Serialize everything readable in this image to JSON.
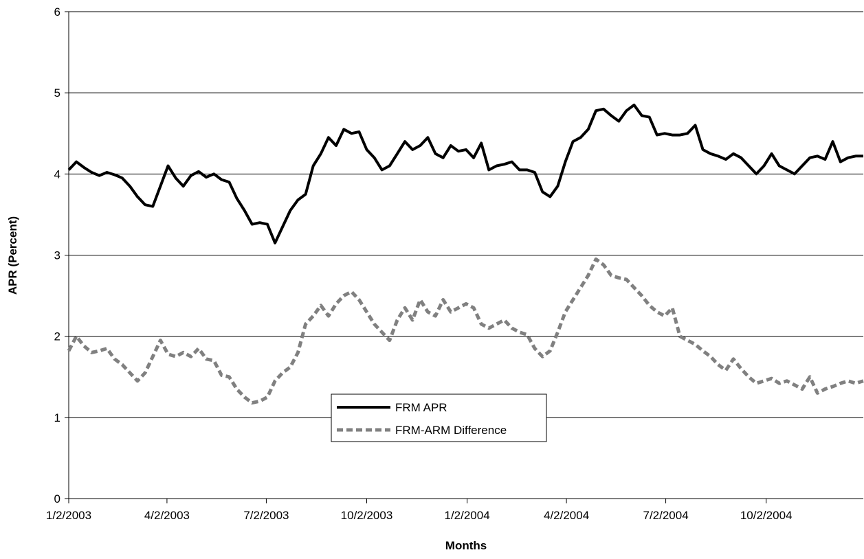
{
  "chart_data": {
    "type": "line",
    "title": "",
    "xlabel": "Months",
    "ylabel": "APR (Percent)",
    "ylim": [
      0,
      6
    ],
    "yticks": [
      0,
      1,
      2,
      3,
      4,
      5,
      6
    ],
    "xlim": [
      "2003-01-02",
      "2004-12-30"
    ],
    "xticks": [
      {
        "date": "2003-01-02",
        "label": "1/2/2003"
      },
      {
        "date": "2003-04-02",
        "label": "4/2/2003"
      },
      {
        "date": "2003-07-02",
        "label": "7/2/2003"
      },
      {
        "date": "2003-10-02",
        "label": "10/2/2003"
      },
      {
        "date": "2004-01-02",
        "label": "1/2/2004"
      },
      {
        "date": "2004-04-02",
        "label": "4/2/2004"
      },
      {
        "date": "2004-07-02",
        "label": "7/2/2004"
      },
      {
        "date": "2004-10-02",
        "label": "10/2/2004"
      }
    ],
    "grid": "horizontal",
    "legend_position": "center-bottom",
    "series": [
      {
        "name": "FRM APR",
        "color": "#000000",
        "style": "solid",
        "points": [
          [
            "2003-01-02",
            4.05
          ],
          [
            "2003-01-09",
            4.15
          ],
          [
            "2003-01-16",
            4.08
          ],
          [
            "2003-01-23",
            4.02
          ],
          [
            "2003-01-30",
            3.98
          ],
          [
            "2003-02-06",
            4.02
          ],
          [
            "2003-02-13",
            3.99
          ],
          [
            "2003-02-20",
            3.95
          ],
          [
            "2003-02-27",
            3.85
          ],
          [
            "2003-03-06",
            3.72
          ],
          [
            "2003-03-13",
            3.62
          ],
          [
            "2003-03-20",
            3.6
          ],
          [
            "2003-03-27",
            3.85
          ],
          [
            "2003-04-03",
            4.1
          ],
          [
            "2003-04-10",
            3.95
          ],
          [
            "2003-04-17",
            3.85
          ],
          [
            "2003-04-24",
            3.98
          ],
          [
            "2003-05-01",
            4.03
          ],
          [
            "2003-05-08",
            3.96
          ],
          [
            "2003-05-15",
            4.0
          ],
          [
            "2003-05-22",
            3.93
          ],
          [
            "2003-05-29",
            3.9
          ],
          [
            "2003-06-05",
            3.7
          ],
          [
            "2003-06-12",
            3.55
          ],
          [
            "2003-06-19",
            3.38
          ],
          [
            "2003-06-26",
            3.4
          ],
          [
            "2003-07-03",
            3.38
          ],
          [
            "2003-07-10",
            3.15
          ],
          [
            "2003-07-17",
            3.35
          ],
          [
            "2003-07-24",
            3.55
          ],
          [
            "2003-07-31",
            3.68
          ],
          [
            "2003-08-07",
            3.75
          ],
          [
            "2003-08-14",
            4.1
          ],
          [
            "2003-08-21",
            4.25
          ],
          [
            "2003-08-28",
            4.45
          ],
          [
            "2003-09-04",
            4.35
          ],
          [
            "2003-09-11",
            4.55
          ],
          [
            "2003-09-18",
            4.5
          ],
          [
            "2003-09-25",
            4.52
          ],
          [
            "2003-10-02",
            4.3
          ],
          [
            "2003-10-09",
            4.2
          ],
          [
            "2003-10-16",
            4.05
          ],
          [
            "2003-10-23",
            4.1
          ],
          [
            "2003-10-30",
            4.25
          ],
          [
            "2003-11-06",
            4.4
          ],
          [
            "2003-11-13",
            4.3
          ],
          [
            "2003-11-20",
            4.35
          ],
          [
            "2003-11-27",
            4.45
          ],
          [
            "2003-12-04",
            4.25
          ],
          [
            "2003-12-11",
            4.2
          ],
          [
            "2003-12-18",
            4.35
          ],
          [
            "2003-12-25",
            4.28
          ],
          [
            "2004-01-01",
            4.3
          ],
          [
            "2004-01-08",
            4.2
          ],
          [
            "2004-01-15",
            4.38
          ],
          [
            "2004-01-22",
            4.05
          ],
          [
            "2004-01-29",
            4.1
          ],
          [
            "2004-02-05",
            4.12
          ],
          [
            "2004-02-12",
            4.15
          ],
          [
            "2004-02-19",
            4.05
          ],
          [
            "2004-02-26",
            4.05
          ],
          [
            "2004-03-04",
            4.02
          ],
          [
            "2004-03-11",
            3.78
          ],
          [
            "2004-03-18",
            3.72
          ],
          [
            "2004-03-25",
            3.85
          ],
          [
            "2004-04-01",
            4.15
          ],
          [
            "2004-04-08",
            4.4
          ],
          [
            "2004-04-15",
            4.45
          ],
          [
            "2004-04-22",
            4.55
          ],
          [
            "2004-04-29",
            4.78
          ],
          [
            "2004-05-06",
            4.8
          ],
          [
            "2004-05-13",
            4.72
          ],
          [
            "2004-05-20",
            4.65
          ],
          [
            "2004-05-27",
            4.78
          ],
          [
            "2004-06-03",
            4.85
          ],
          [
            "2004-06-10",
            4.72
          ],
          [
            "2004-06-17",
            4.7
          ],
          [
            "2004-06-24",
            4.48
          ],
          [
            "2004-07-01",
            4.5
          ],
          [
            "2004-07-08",
            4.48
          ],
          [
            "2004-07-15",
            4.48
          ],
          [
            "2004-07-22",
            4.5
          ],
          [
            "2004-07-29",
            4.6
          ],
          [
            "2004-08-05",
            4.3
          ],
          [
            "2004-08-12",
            4.25
          ],
          [
            "2004-08-19",
            4.22
          ],
          [
            "2004-08-26",
            4.18
          ],
          [
            "2004-09-02",
            4.25
          ],
          [
            "2004-09-09",
            4.2
          ],
          [
            "2004-09-16",
            4.1
          ],
          [
            "2004-09-23",
            4.0
          ],
          [
            "2004-09-30",
            4.1
          ],
          [
            "2004-10-07",
            4.25
          ],
          [
            "2004-10-14",
            4.1
          ],
          [
            "2004-10-21",
            4.05
          ],
          [
            "2004-10-28",
            4.0
          ],
          [
            "2004-11-04",
            4.1
          ],
          [
            "2004-11-11",
            4.2
          ],
          [
            "2004-11-18",
            4.22
          ],
          [
            "2004-11-25",
            4.18
          ],
          [
            "2004-12-02",
            4.4
          ],
          [
            "2004-12-09",
            4.15
          ],
          [
            "2004-12-16",
            4.2
          ],
          [
            "2004-12-23",
            4.22
          ],
          [
            "2004-12-30",
            4.22
          ]
        ]
      },
      {
        "name": "FRM-ARM Difference",
        "color": "#808080",
        "style": "dashed",
        "points": [
          [
            "2003-01-02",
            1.82
          ],
          [
            "2003-01-09",
            2.0
          ],
          [
            "2003-01-16",
            1.88
          ],
          [
            "2003-01-23",
            1.8
          ],
          [
            "2003-01-30",
            1.82
          ],
          [
            "2003-02-06",
            1.85
          ],
          [
            "2003-02-13",
            1.72
          ],
          [
            "2003-02-20",
            1.65
          ],
          [
            "2003-02-27",
            1.55
          ],
          [
            "2003-03-06",
            1.45
          ],
          [
            "2003-03-13",
            1.55
          ],
          [
            "2003-03-20",
            1.75
          ],
          [
            "2003-03-27",
            1.95
          ],
          [
            "2003-04-03",
            1.78
          ],
          [
            "2003-04-10",
            1.75
          ],
          [
            "2003-04-17",
            1.8
          ],
          [
            "2003-04-24",
            1.75
          ],
          [
            "2003-05-01",
            1.85
          ],
          [
            "2003-05-08",
            1.72
          ],
          [
            "2003-05-15",
            1.7
          ],
          [
            "2003-05-22",
            1.52
          ],
          [
            "2003-05-29",
            1.5
          ],
          [
            "2003-06-05",
            1.35
          ],
          [
            "2003-06-12",
            1.25
          ],
          [
            "2003-06-19",
            1.18
          ],
          [
            "2003-06-26",
            1.2
          ],
          [
            "2003-07-03",
            1.25
          ],
          [
            "2003-07-10",
            1.45
          ],
          [
            "2003-07-17",
            1.55
          ],
          [
            "2003-07-24",
            1.62
          ],
          [
            "2003-07-31",
            1.8
          ],
          [
            "2003-08-07",
            2.15
          ],
          [
            "2003-08-14",
            2.25
          ],
          [
            "2003-08-21",
            2.38
          ],
          [
            "2003-08-28",
            2.25
          ],
          [
            "2003-09-04",
            2.4
          ],
          [
            "2003-09-11",
            2.5
          ],
          [
            "2003-09-18",
            2.55
          ],
          [
            "2003-09-25",
            2.45
          ],
          [
            "2003-10-02",
            2.3
          ],
          [
            "2003-10-09",
            2.15
          ],
          [
            "2003-10-16",
            2.05
          ],
          [
            "2003-10-23",
            1.95
          ],
          [
            "2003-10-30",
            2.2
          ],
          [
            "2003-11-06",
            2.35
          ],
          [
            "2003-11-13",
            2.2
          ],
          [
            "2003-11-20",
            2.45
          ],
          [
            "2003-11-27",
            2.3
          ],
          [
            "2003-12-04",
            2.25
          ],
          [
            "2003-12-11",
            2.45
          ],
          [
            "2003-12-18",
            2.3
          ],
          [
            "2003-12-25",
            2.35
          ],
          [
            "2004-01-01",
            2.4
          ],
          [
            "2004-01-08",
            2.35
          ],
          [
            "2004-01-15",
            2.15
          ],
          [
            "2004-01-22",
            2.1
          ],
          [
            "2004-01-29",
            2.15
          ],
          [
            "2004-02-05",
            2.2
          ],
          [
            "2004-02-12",
            2.1
          ],
          [
            "2004-02-19",
            2.05
          ],
          [
            "2004-02-26",
            2.02
          ],
          [
            "2004-03-04",
            1.85
          ],
          [
            "2004-03-11",
            1.75
          ],
          [
            "2004-03-18",
            1.82
          ],
          [
            "2004-03-25",
            2.05
          ],
          [
            "2004-04-01",
            2.3
          ],
          [
            "2004-04-08",
            2.45
          ],
          [
            "2004-04-15",
            2.6
          ],
          [
            "2004-04-22",
            2.75
          ],
          [
            "2004-04-29",
            2.95
          ],
          [
            "2004-05-06",
            2.88
          ],
          [
            "2004-05-13",
            2.75
          ],
          [
            "2004-05-20",
            2.72
          ],
          [
            "2004-05-27",
            2.7
          ],
          [
            "2004-06-03",
            2.6
          ],
          [
            "2004-06-10",
            2.5
          ],
          [
            "2004-06-17",
            2.38
          ],
          [
            "2004-06-24",
            2.3
          ],
          [
            "2004-07-01",
            2.25
          ],
          [
            "2004-07-08",
            2.35
          ],
          [
            "2004-07-15",
            2.0
          ],
          [
            "2004-07-22",
            1.95
          ],
          [
            "2004-07-29",
            1.9
          ],
          [
            "2004-08-05",
            1.82
          ],
          [
            "2004-08-12",
            1.75
          ],
          [
            "2004-08-19",
            1.65
          ],
          [
            "2004-08-26",
            1.58
          ],
          [
            "2004-09-02",
            1.72
          ],
          [
            "2004-09-09",
            1.6
          ],
          [
            "2004-09-16",
            1.5
          ],
          [
            "2004-09-23",
            1.42
          ],
          [
            "2004-09-30",
            1.45
          ],
          [
            "2004-10-07",
            1.48
          ],
          [
            "2004-10-14",
            1.42
          ],
          [
            "2004-10-21",
            1.45
          ],
          [
            "2004-10-28",
            1.4
          ],
          [
            "2004-11-04",
            1.35
          ],
          [
            "2004-11-11",
            1.5
          ],
          [
            "2004-11-18",
            1.3
          ],
          [
            "2004-11-25",
            1.35
          ],
          [
            "2004-12-02",
            1.38
          ],
          [
            "2004-12-09",
            1.42
          ],
          [
            "2004-12-16",
            1.45
          ],
          [
            "2004-12-23",
            1.42
          ],
          [
            "2004-12-30",
            1.45
          ]
        ]
      }
    ]
  }
}
